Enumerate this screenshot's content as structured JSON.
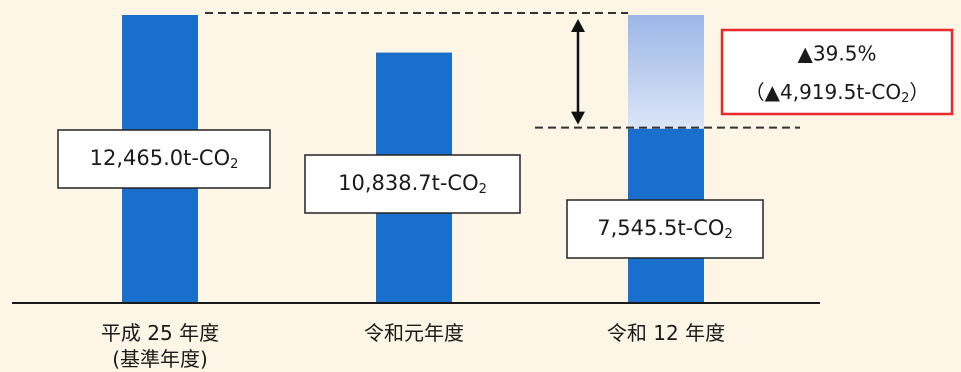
{
  "chart_data": {
    "type": "bar",
    "categories": [
      "平成 25 年度",
      "令和元年度",
      "令和 12 年度"
    ],
    "category_sublabels": [
      "(基準年度)",
      "",
      ""
    ],
    "values": [
      12465.0,
      10838.7,
      7545.5
    ],
    "value_labels": [
      "12,465.0t-CO",
      "10,838.7t-CO",
      "7,545.5t-CO"
    ],
    "value_label_subscript": "2",
    "reduction": {
      "from_value": 12465.0,
      "to_value": 7545.5,
      "amount": 4919.5,
      "percent_label": "▲39.5%",
      "amount_label_open": "（▲4,919.5t-CO",
      "amount_label_subscript": "2",
      "amount_label_close": "）"
    },
    "grid": false,
    "legend": "none",
    "colors": {
      "bar": "#1a6fcc",
      "reduction_gradient_top": "#9cb6e6",
      "reduction_gradient_bottom": "#dbe5f7",
      "callout_border": "#e8292d",
      "background": "#fdf6e6"
    }
  }
}
